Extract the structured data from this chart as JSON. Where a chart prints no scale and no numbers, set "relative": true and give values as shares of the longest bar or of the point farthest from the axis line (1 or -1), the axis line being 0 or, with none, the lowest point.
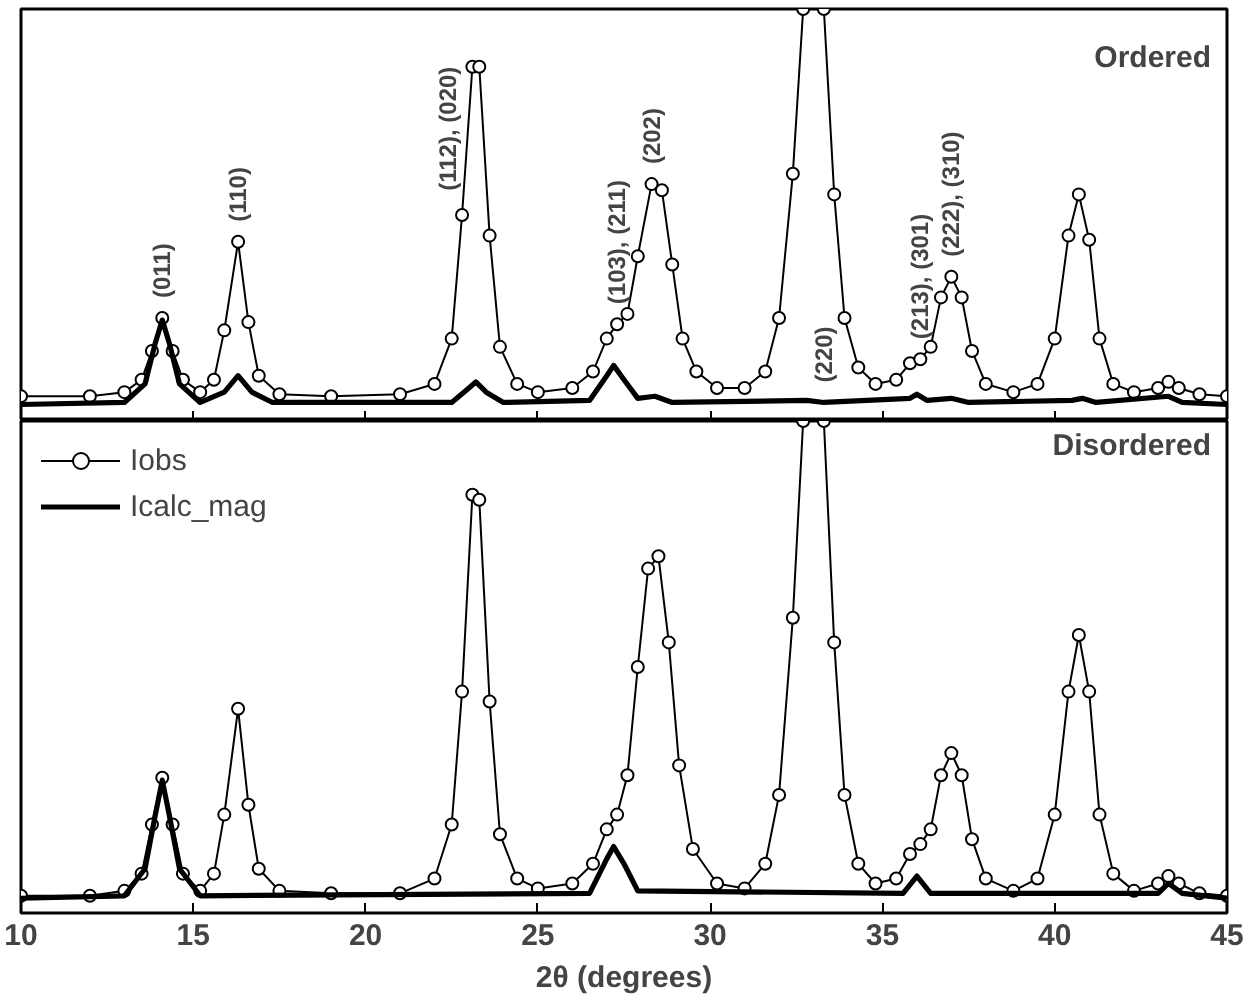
{
  "chart_data": [
    {
      "type": "line",
      "title": "Ordered",
      "relative": true,
      "xlim": [
        10,
        45
      ],
      "xticks": [
        10,
        15,
        20,
        25,
        30,
        35,
        40,
        45
      ],
      "tick_labels": false,
      "grid": false,
      "legend": false,
      "series": [
        {
          "color": "#000000",
          "marker": "circle",
          "x": [
            10,
            12,
            13,
            13.5,
            13.8,
            14.1,
            14.4,
            14.7,
            15.2,
            15.6,
            15.9,
            16.3,
            16.6,
            16.9,
            17.5,
            19,
            21,
            22,
            22.5,
            22.8,
            23.1,
            23.3,
            23.6,
            23.9,
            24.4,
            25,
            26,
            26.6,
            27,
            27.3,
            27.6,
            27.9,
            28.3,
            28.6,
            28.9,
            29.2,
            29.6,
            30.2,
            31,
            31.6,
            32,
            32.4,
            32.7,
            33.3,
            33.6,
            33.9,
            34.3,
            34.8,
            35.4,
            35.8,
            36.1,
            36.4,
            36.7,
            37,
            37.3,
            37.6,
            38,
            38.8,
            39.5,
            40,
            40.4,
            40.7,
            41,
            41.3,
            41.7,
            42.3,
            43,
            43.3,
            43.6,
            44.2,
            45
          ],
          "values": [
            0.06,
            0.06,
            0.07,
            0.1,
            0.17,
            0.25,
            0.17,
            0.1,
            0.07,
            0.1,
            0.22,
            0.435,
            0.24,
            0.11,
            0.065,
            0.06,
            0.065,
            0.09,
            0.2,
            0.5,
            0.86,
            0.86,
            0.45,
            0.18,
            0.09,
            0.07,
            0.08,
            0.12,
            0.2,
            0.235,
            0.26,
            0.4,
            0.575,
            0.56,
            0.38,
            0.2,
            0.12,
            0.08,
            0.08,
            0.12,
            0.25,
            0.6,
            1.0,
            1.0,
            0.55,
            0.25,
            0.13,
            0.09,
            0.1,
            0.14,
            0.15,
            0.18,
            0.3,
            0.35,
            0.3,
            0.17,
            0.09,
            0.07,
            0.09,
            0.2,
            0.45,
            0.55,
            0.44,
            0.2,
            0.09,
            0.07,
            0.08,
            0.095,
            0.08,
            0.065,
            0.06
          ]
        },
        {
          "color": "#000000",
          "marker": "none",
          "x": [
            10,
            13,
            13.6,
            13.9,
            14.1,
            14.3,
            14.6,
            15.2,
            15.9,
            16.3,
            16.7,
            17.3,
            22.5,
            23,
            23.2,
            23.5,
            24,
            26.5,
            27,
            27.2,
            27.5,
            27.9,
            28.4,
            28.9,
            32.8,
            33.3,
            35.8,
            36,
            36.3,
            37,
            37.5,
            40.5,
            40.8,
            41.2,
            43.3,
            43.7,
            45
          ],
          "values": [
            0.04,
            0.045,
            0.09,
            0.19,
            0.245,
            0.19,
            0.09,
            0.045,
            0.07,
            0.11,
            0.07,
            0.045,
            0.045,
            0.08,
            0.095,
            0.07,
            0.045,
            0.05,
            0.11,
            0.135,
            0.1,
            0.055,
            0.06,
            0.045,
            0.05,
            0.045,
            0.055,
            0.065,
            0.05,
            0.055,
            0.045,
            0.05,
            0.055,
            0.045,
            0.06,
            0.045,
            0.04
          ]
        }
      ],
      "annotations": [
        {
          "text": "(011)",
          "x": 14.1,
          "y": 0.25
        },
        {
          "text": "(110)",
          "x": 16.3,
          "y": 0.435
        },
        {
          "text": "(112), (020)",
          "x": 23.1,
          "y": 0.86
        },
        {
          "text": "(103), (211)",
          "x": 27.3,
          "y": 0.235
        },
        {
          "text": "(202)",
          "x": 28.3,
          "y": 0.575
        },
        {
          "text": "(220)",
          "x": 33.3,
          "y": 0.045
        },
        {
          "text": "(213), (301)",
          "x": 36.1,
          "y": 0.15
        },
        {
          "text": "(222), (310)",
          "x": 37,
          "y": 0.35
        }
      ]
    },
    {
      "type": "line",
      "title": "Disordered",
      "relative": true,
      "xlim": [
        10,
        45
      ],
      "xticks": [
        10,
        15,
        20,
        25,
        30,
        35,
        40,
        45
      ],
      "xlabel": "2θ (degrees)",
      "tick_labels": "x",
      "grid": false,
      "legend": "top left",
      "series": [
        {
          "name": "Iobs",
          "color": "#000000",
          "marker": "circle",
          "x": [
            10,
            12,
            13,
            13.5,
            13.8,
            14.1,
            14.4,
            14.7,
            15.2,
            15.6,
            15.9,
            16.3,
            16.6,
            16.9,
            17.5,
            19,
            21,
            22,
            22.5,
            22.8,
            23.1,
            23.3,
            23.6,
            23.9,
            24.4,
            25,
            26,
            26.6,
            27,
            27.3,
            27.6,
            27.9,
            28.2,
            28.5,
            28.8,
            29.1,
            29.5,
            30.2,
            31,
            31.6,
            32,
            32.4,
            32.7,
            33.3,
            33.6,
            33.9,
            34.3,
            34.8,
            35.4,
            35.8,
            36.1,
            36.4,
            36.7,
            37,
            37.3,
            37.6,
            38,
            38.8,
            39.5,
            40,
            40.4,
            40.7,
            41,
            41.3,
            41.7,
            42.3,
            43,
            43.3,
            43.6,
            44.2,
            45
          ],
          "values": [
            0.035,
            0.035,
            0.045,
            0.08,
            0.18,
            0.275,
            0.18,
            0.08,
            0.045,
            0.08,
            0.2,
            0.415,
            0.22,
            0.09,
            0.045,
            0.04,
            0.04,
            0.07,
            0.18,
            0.45,
            0.85,
            0.84,
            0.43,
            0.16,
            0.07,
            0.05,
            0.06,
            0.1,
            0.17,
            0.2,
            0.28,
            0.5,
            0.7,
            0.725,
            0.55,
            0.3,
            0.13,
            0.06,
            0.05,
            0.1,
            0.24,
            0.6,
            1.0,
            1.0,
            0.55,
            0.24,
            0.1,
            0.06,
            0.07,
            0.12,
            0.14,
            0.17,
            0.28,
            0.325,
            0.28,
            0.15,
            0.07,
            0.045,
            0.07,
            0.2,
            0.45,
            0.565,
            0.45,
            0.2,
            0.08,
            0.045,
            0.06,
            0.075,
            0.06,
            0.04,
            0.035
          ]
        },
        {
          "name": "Icalc_mag",
          "color": "#000000",
          "marker": "none",
          "x": [
            10,
            13,
            13.6,
            13.9,
            14.1,
            14.3,
            14.6,
            15.2,
            26.5,
            27,
            27.2,
            27.5,
            27.9,
            35.6,
            36,
            36.4,
            43,
            43.3,
            43.7,
            45
          ],
          "values": [
            0.03,
            0.035,
            0.09,
            0.2,
            0.27,
            0.2,
            0.09,
            0.035,
            0.04,
            0.11,
            0.135,
            0.1,
            0.045,
            0.04,
            0.075,
            0.04,
            0.04,
            0.06,
            0.04,
            0.03
          ]
        }
      ]
    }
  ]
}
